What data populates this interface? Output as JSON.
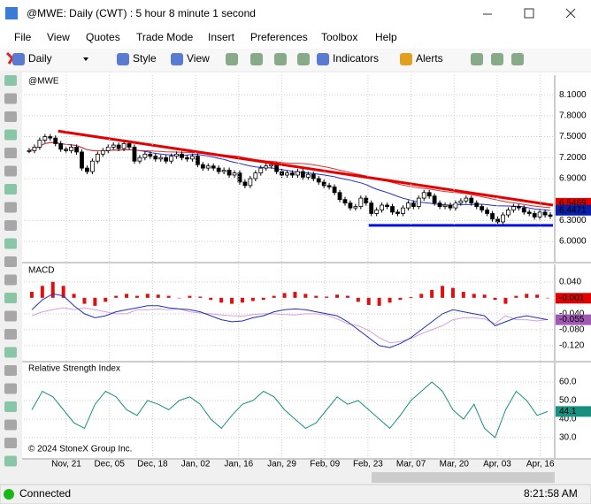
{
  "window": {
    "title": "@MWE: Daily (CWT) : 5 hour 8 minute 1 second"
  },
  "menu": [
    "File",
    "View",
    "Quotes",
    "Trade Mode",
    "Insert",
    "Preferences",
    "Toolbox",
    "Help"
  ],
  "toolbar": {
    "interval": "Daily",
    "style": "Style",
    "view": "View",
    "indicators": "Indicators",
    "alerts": "Alerts"
  },
  "status": {
    "connection": "Connected",
    "time": "8:21:58 AM"
  },
  "chart_data": [
    {
      "type": "candlestick",
      "title": "@MWE",
      "close": [
        7.3,
        7.35,
        7.45,
        7.5,
        7.48,
        7.4,
        7.32,
        7.3,
        7.35,
        7.28,
        7.05,
        7.0,
        7.15,
        7.25,
        7.3,
        7.35,
        7.38,
        7.33,
        7.4,
        7.35,
        7.15,
        7.2,
        7.25,
        7.22,
        7.18,
        7.2,
        7.15,
        7.22,
        7.25,
        7.2,
        7.18,
        7.22,
        7.1,
        7.05,
        7.08,
        7.05,
        7.0,
        7.02,
        6.95,
        6.98,
        6.85,
        6.8,
        6.9,
        6.98,
        7.05,
        7.08,
        7.1,
        7.0,
        6.95,
        6.98,
        6.95,
        7.0,
        6.92,
        6.96,
        6.9,
        6.85,
        6.8,
        6.78,
        6.7,
        6.6,
        6.55,
        6.48,
        6.5,
        6.62,
        6.55,
        6.4,
        6.45,
        6.52,
        6.5,
        6.42,
        6.4,
        6.48,
        6.55,
        6.5,
        6.62,
        6.7,
        6.65,
        6.55,
        6.5,
        6.52,
        6.48,
        6.55,
        6.58,
        6.62,
        6.55,
        6.5,
        6.45,
        6.4,
        6.32,
        6.28,
        6.38,
        6.45,
        6.5,
        6.48,
        6.42,
        6.4,
        6.35,
        6.42,
        6.38,
        6.36
      ],
      "ylim": [
        5.71,
        8.38
      ],
      "yticks": [
        {
          "value": 8.1,
          "label": "8.1000"
        },
        {
          "value": 7.8,
          "label": "7.8000"
        },
        {
          "value": 7.5,
          "label": "7.5000"
        },
        {
          "value": 7.2,
          "label": "7.2000"
        },
        {
          "value": 6.9,
          "label": "6.9000"
        },
        {
          "value": 6.3,
          "label": "6.3000"
        },
        {
          "value": 6.0,
          "label": "6.0000"
        }
      ],
      "price_labels": [
        {
          "value": 6.5469,
          "label": "6.5469",
          "color": "#e00000"
        },
        {
          "value": 6.4471,
          "label": "6.4471",
          "color": "#0a1ea8"
        }
      ],
      "trendlines": [
        {
          "color": "#e60000",
          "start": [
            6,
            7.58
          ],
          "end": [
            100,
            6.52
          ]
        },
        {
          "color": "#0010e0",
          "start": [
            65,
            6.23
          ],
          "end": [
            100,
            6.23
          ]
        }
      ],
      "x_labels": [
        "Nov, 21",
        "Dec, 05",
        "Dec, 18",
        "Jan, 02",
        "Jan, 16",
        "Jan, 29",
        "Feb, 09",
        "Feb, 23",
        "Mar, 07",
        "Mar, 20",
        "Apr, 03",
        "Apr, 16"
      ],
      "copyright": "© 2024 StoneX Group Inc."
    },
    {
      "type": "macd",
      "title": "MACD",
      "histogram": [
        0.015,
        0.03,
        0.04,
        0.03,
        0.01,
        -0.015,
        -0.02,
        -0.01,
        0.005,
        0.01,
        0.005,
        0.01,
        0.008,
        0.005,
        0.0,
        0.005,
        0.003,
        -0.005,
        -0.012,
        -0.015,
        -0.012,
        -0.008,
        -0.005,
        0.005,
        0.012,
        0.015,
        0.01,
        0.005,
        0.003,
        0.008,
        0.005,
        -0.01,
        -0.018,
        -0.02,
        -0.012,
        -0.005,
        0.002,
        0.01,
        0.02,
        0.03,
        0.025,
        0.015,
        0.01,
        0.008,
        -0.005,
        -0.015,
        0.005,
        0.01,
        0.008,
        -0.001
      ],
      "macd": [
        -0.03,
        -0.005,
        0.01,
        0.005,
        -0.02,
        -0.04,
        -0.05,
        -0.045,
        -0.035,
        -0.03,
        -0.025,
        -0.02,
        -0.02,
        -0.025,
        -0.028,
        -0.03,
        -0.035,
        -0.045,
        -0.055,
        -0.06,
        -0.058,
        -0.05,
        -0.045,
        -0.035,
        -0.03,
        -0.028,
        -0.03,
        -0.035,
        -0.04,
        -0.045,
        -0.06,
        -0.08,
        -0.1,
        -0.12,
        -0.125,
        -0.115,
        -0.1,
        -0.08,
        -0.06,
        -0.04,
        -0.03,
        -0.035,
        -0.04,
        -0.045,
        -0.07,
        -0.06,
        -0.05,
        -0.045,
        -0.05,
        -0.055
      ],
      "ylim": [
        -0.158,
        0.084
      ],
      "yticks": [
        {
          "value": 0.04,
          "label": "0.040"
        },
        {
          "value": -0.04,
          "label": "-0.040"
        },
        {
          "value": -0.08,
          "label": "-0.080"
        },
        {
          "value": -0.12,
          "label": "-0.120"
        }
      ],
      "price_labels": [
        {
          "value": -0.001,
          "label": "-0.001",
          "color": "#e00000"
        },
        {
          "value": -0.055,
          "label": "-0.055",
          "color": "#a05ab4"
        }
      ]
    },
    {
      "type": "rsi",
      "title": "Relative Strength Index",
      "values": [
        45,
        55,
        52,
        45,
        38,
        35,
        48,
        55,
        52,
        45,
        42,
        50,
        48,
        45,
        50,
        52,
        48,
        40,
        35,
        42,
        48,
        50,
        55,
        52,
        45,
        40,
        35,
        38,
        45,
        52,
        48,
        50,
        45,
        40,
        35,
        42,
        50,
        55,
        60,
        55,
        45,
        40,
        48,
        35,
        30,
        45,
        55,
        50,
        42,
        44.1
      ],
      "ylim": [
        19,
        70.5
      ],
      "yticks": [
        {
          "value": 60,
          "label": "60.0"
        },
        {
          "value": 50,
          "label": "50.0"
        },
        {
          "value": 40,
          "label": "40.0"
        },
        {
          "value": 30,
          "label": "30.0"
        }
      ],
      "price_labels": [
        {
          "value": 44.1,
          "label": "44.1",
          "color": "#18907f"
        }
      ]
    }
  ]
}
